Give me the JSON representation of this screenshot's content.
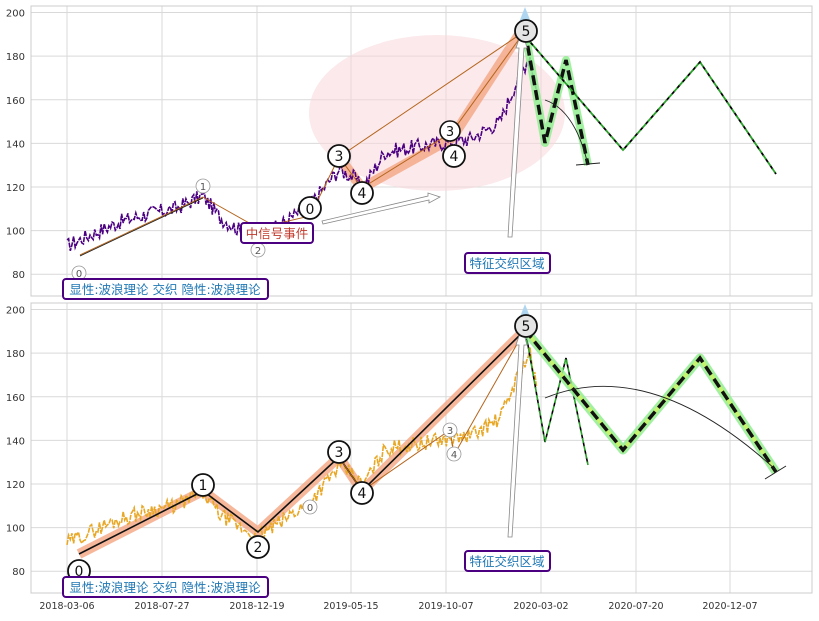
{
  "colors": {
    "price_top": "#4b0082",
    "price_bottom": "#e8a826",
    "wave_thin": "#b5651d",
    "wave_bold_bg": "#f4a582",
    "ellipse": "#f8d7da",
    "green_bg": "#90ee90",
    "label_border": "#4b0082",
    "label_text": "#1f77b4",
    "event_text": "#c0392b"
  },
  "chart_data": [
    {
      "type": "line",
      "panel": "top",
      "x_tick_labels": [],
      "y_ticks": [
        80,
        100,
        120,
        140,
        160,
        180,
        200
      ],
      "ylim": [
        70,
        203
      ],
      "grid": true,
      "labels": {
        "bottom_left": "显性:波浪理论 交织 隐性:波浪理论",
        "event": "中信号事件",
        "zone": "特征交织区域"
      },
      "wave_points": [
        {
          "label": "0",
          "x": "2018-04",
          "y": 79
        },
        {
          "label": "1",
          "x": "2018-10",
          "y": 119
        },
        {
          "label": "2",
          "x": "2019-01",
          "y": 90
        },
        {
          "label": "0",
          "x": "2019-04",
          "y": 109
        },
        {
          "label": "3",
          "x": "2019-05",
          "y": 134
        },
        {
          "label": "4",
          "x": "2019-07",
          "y": 122
        },
        {
          "label": "3",
          "x": "2019-12",
          "y": 144
        },
        {
          "label": "4",
          "x": "2019-12",
          "y": 134
        },
        {
          "label": "5",
          "x": "2020-03",
          "y": 192
        }
      ]
    },
    {
      "type": "line",
      "panel": "bottom",
      "x_tick_labels": [
        "2018-03-06",
        "2018-07-27",
        "2018-12-19",
        "2019-05-15",
        "2019-10-07",
        "2020-03-02",
        "2020-07-20",
        "2020-12-07"
      ],
      "y_ticks": [
        80,
        100,
        120,
        140,
        160,
        180,
        200
      ],
      "ylim": [
        70,
        203
      ],
      "grid": true,
      "labels": {
        "bottom_left": "显性:波浪理论 交织 隐性:波浪理论",
        "zone": "特征交织区域"
      },
      "wave_points": [
        {
          "label": "0",
          "x": "2018-04",
          "y": 79
        },
        {
          "label": "1",
          "x": "2018-10",
          "y": 119
        },
        {
          "label": "2",
          "x": "2019-01",
          "y": 90
        },
        {
          "label": "0",
          "x": "2019-04",
          "y": 109
        },
        {
          "label": "3",
          "x": "2019-05",
          "y": 134
        },
        {
          "label": "4",
          "x": "2019-07",
          "y": 115
        },
        {
          "label": "3",
          "x": "2019-12",
          "y": 144
        },
        {
          "label": "4",
          "x": "2019-12",
          "y": 133
        },
        {
          "label": "5",
          "x": "2020-03",
          "y": 192
        }
      ]
    }
  ]
}
